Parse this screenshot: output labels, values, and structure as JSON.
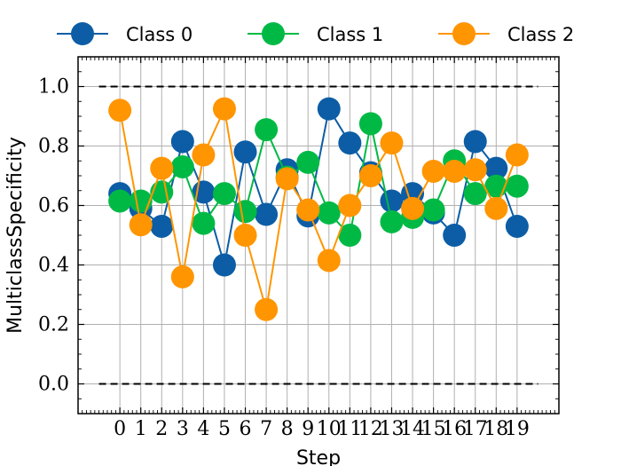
{
  "chart_data": {
    "type": "line",
    "title": "",
    "xlabel": "Step",
    "ylabel": "MulticlassSpecificity",
    "xlim": [
      -2,
      21
    ],
    "ylim": [
      -0.1,
      1.1
    ],
    "x": [
      0,
      1,
      2,
      3,
      4,
      5,
      6,
      7,
      8,
      9,
      10,
      11,
      12,
      13,
      14,
      15,
      16,
      17,
      18,
      19
    ],
    "x_tick_labels": [
      "0",
      "1",
      "2",
      "3",
      "4",
      "5",
      "6",
      "7",
      "8",
      "9",
      "10",
      "11",
      "12",
      "13",
      "14",
      "15",
      "16",
      "17",
      "18",
      "19"
    ],
    "y_ticks": [
      0.0,
      0.2,
      0.4,
      0.6,
      0.8,
      1.0
    ],
    "y_tick_labels": [
      "0.0",
      "0.2",
      "0.4",
      "0.6",
      "0.8",
      "1.0"
    ],
    "reference_lines": [
      0.0,
      1.0
    ],
    "grid": true,
    "legend_position": "top",
    "series": [
      {
        "name": "Class 0",
        "color": "#0C5DA5",
        "values": [
          0.64,
          0.59,
          0.53,
          0.815,
          0.645,
          0.4,
          0.78,
          0.57,
          0.72,
          0.565,
          0.925,
          0.81,
          0.71,
          0.615,
          0.64,
          0.575,
          0.5,
          0.815,
          0.725,
          0.53
        ]
      },
      {
        "name": "Class 1",
        "color": "#00B945",
        "values": [
          0.615,
          0.615,
          0.645,
          0.73,
          0.54,
          0.64,
          0.58,
          0.855,
          0.695,
          0.745,
          0.575,
          0.5,
          0.875,
          0.545,
          0.56,
          0.585,
          0.75,
          0.64,
          0.665,
          0.665
        ]
      },
      {
        "name": "Class 2",
        "color": "#FF9500",
        "values": [
          0.92,
          0.535,
          0.725,
          0.36,
          0.77,
          0.925,
          0.5,
          0.25,
          0.69,
          0.585,
          0.415,
          0.6,
          0.7,
          0.81,
          0.59,
          0.715,
          0.715,
          0.72,
          0.59,
          0.77
        ]
      }
    ]
  }
}
